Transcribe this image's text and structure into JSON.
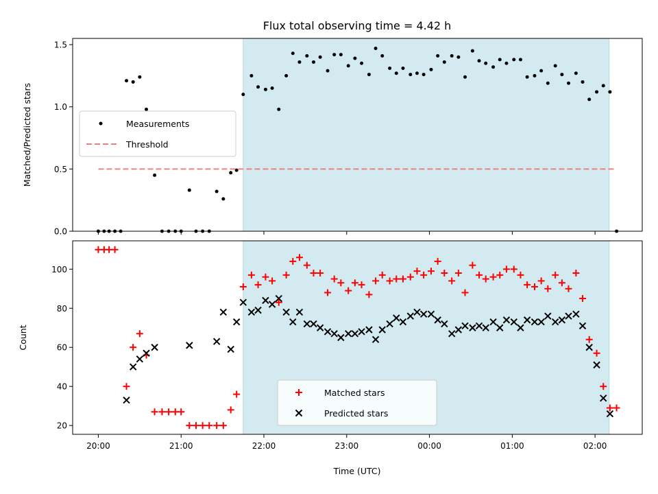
{
  "chart_data": {
    "title": "Flux total observing time = 4.42 h",
    "x_axis": {
      "label": "Time (UTC)",
      "unit": "hours since 20:00 UTC",
      "range": [
        -0.31,
        6.57
      ],
      "ticks": [
        {
          "value": 0,
          "label": "20:00"
        },
        {
          "value": 1,
          "label": "21:00"
        },
        {
          "value": 2,
          "label": "22:00"
        },
        {
          "value": 3,
          "label": "23:00"
        },
        {
          "value": 4,
          "label": "00:00"
        },
        {
          "value": 5,
          "label": "01:00"
        },
        {
          "value": 6,
          "label": "02:00"
        }
      ]
    },
    "observing_window": {
      "start": 1.75,
      "end": 6.17,
      "color": "#d3ebf0"
    },
    "panels": [
      {
        "id": "ratio",
        "type": "scatter",
        "ylabel": "Matched/Predicted stars",
        "ylim": [
          0,
          1.55
        ],
        "yticks": [
          {
            "value": 0,
            "label": "0.0"
          },
          {
            "value": 0.5,
            "label": "0.5"
          },
          {
            "value": 1.0,
            "label": "1.0"
          },
          {
            "value": 1.5,
            "label": "1.5"
          }
        ],
        "legend": {
          "position": "center-left",
          "entries": [
            {
              "label": "Measurements",
              "marker": "dot",
              "color": "#000000"
            },
            {
              "label": "Threshold",
              "marker": "dashed-line",
              "color": "#f08080"
            }
          ]
        },
        "series": [
          {
            "name": "Measurements",
            "marker": "dot",
            "color": "#000000",
            "points": [
              [
                0.0,
                0
              ],
              [
                0.07,
                0
              ],
              [
                0.13,
                0
              ],
              [
                0.2,
                0
              ],
              [
                0.27,
                0
              ],
              [
                0.34,
                1.21
              ],
              [
                0.42,
                1.2
              ],
              [
                0.5,
                1.24
              ],
              [
                0.58,
                0.98
              ],
              [
                0.68,
                0.45
              ],
              [
                0.77,
                0
              ],
              [
                0.85,
                0
              ],
              [
                0.93,
                0
              ],
              [
                1.0,
                0
              ],
              [
                1.1,
                0.33
              ],
              [
                1.18,
                0
              ],
              [
                1.26,
                0
              ],
              [
                1.34,
                0
              ],
              [
                1.43,
                0.32
              ],
              [
                1.51,
                0.26
              ],
              [
                1.6,
                0.47
              ],
              [
                1.67,
                0.49
              ],
              [
                1.75,
                1.1
              ],
              [
                1.85,
                1.25
              ],
              [
                1.93,
                1.16
              ],
              [
                2.02,
                1.14
              ],
              [
                2.1,
                1.15
              ],
              [
                2.18,
                0.98
              ],
              [
                2.27,
                1.25
              ],
              [
                2.35,
                1.43
              ],
              [
                2.43,
                1.36
              ],
              [
                2.52,
                1.41
              ],
              [
                2.6,
                1.36
              ],
              [
                2.68,
                1.4
              ],
              [
                2.77,
                1.29
              ],
              [
                2.85,
                1.42
              ],
              [
                2.93,
                1.42
              ],
              [
                3.02,
                1.33
              ],
              [
                3.1,
                1.39
              ],
              [
                3.18,
                1.35
              ],
              [
                3.27,
                1.26
              ],
              [
                3.35,
                1.47
              ],
              [
                3.43,
                1.41
              ],
              [
                3.52,
                1.31
              ],
              [
                3.6,
                1.27
              ],
              [
                3.68,
                1.31
              ],
              [
                3.77,
                1.26
              ],
              [
                3.85,
                1.27
              ],
              [
                3.93,
                1.26
              ],
              [
                4.02,
                1.3
              ],
              [
                4.1,
                1.41
              ],
              [
                4.18,
                1.36
              ],
              [
                4.27,
                1.41
              ],
              [
                4.35,
                1.4
              ],
              [
                4.43,
                1.24
              ],
              [
                4.52,
                1.45
              ],
              [
                4.6,
                1.37
              ],
              [
                4.68,
                1.35
              ],
              [
                4.77,
                1.32
              ],
              [
                4.85,
                1.38
              ],
              [
                4.93,
                1.35
              ],
              [
                5.02,
                1.38
              ],
              [
                5.1,
                1.38
              ],
              [
                5.18,
                1.24
              ],
              [
                5.27,
                1.25
              ],
              [
                5.35,
                1.29
              ],
              [
                5.43,
                1.19
              ],
              [
                5.52,
                1.33
              ],
              [
                5.6,
                1.26
              ],
              [
                5.68,
                1.19
              ],
              [
                5.77,
                1.27
              ],
              [
                5.85,
                1.2
              ],
              [
                5.93,
                1.06
              ],
              [
                6.02,
                1.12
              ],
              [
                6.1,
                1.17
              ],
              [
                6.18,
                1.12
              ],
              [
                6.26,
                0
              ]
            ]
          },
          {
            "name": "Threshold",
            "marker": "dashed-line",
            "color": "#f08080",
            "points": [
              [
                0.0,
                0.5
              ],
              [
                6.26,
                0.5
              ]
            ]
          }
        ]
      },
      {
        "id": "counts",
        "type": "scatter",
        "ylabel": "Count",
        "ylim": [
          15.5,
          114.5
        ],
        "yticks": [
          {
            "value": 20,
            "label": "20"
          },
          {
            "value": 40,
            "label": "40"
          },
          {
            "value": 60,
            "label": "60"
          },
          {
            "value": 80,
            "label": "80"
          },
          {
            "value": 100,
            "label": "100"
          }
        ],
        "legend": {
          "position": "lower-center",
          "entries": [
            {
              "label": "Matched stars",
              "marker": "plus",
              "color": "#ff0000"
            },
            {
              "label": "Predicted stars",
              "marker": "x",
              "color": "#000000"
            }
          ]
        },
        "series": [
          {
            "name": "Matched stars",
            "marker": "plus",
            "color": "#ff0000",
            "points": [
              [
                0.0,
                110
              ],
              [
                0.07,
                110
              ],
              [
                0.13,
                110
              ],
              [
                0.2,
                110
              ],
              [
                0.34,
                40
              ],
              [
                0.42,
                60
              ],
              [
                0.5,
                67
              ],
              [
                0.58,
                56
              ],
              [
                0.68,
                27
              ],
              [
                0.77,
                27
              ],
              [
                0.85,
                27
              ],
              [
                0.93,
                27
              ],
              [
                1.0,
                27
              ],
              [
                1.1,
                20
              ],
              [
                1.18,
                20
              ],
              [
                1.26,
                20
              ],
              [
                1.34,
                20
              ],
              [
                1.43,
                20
              ],
              [
                1.51,
                20
              ],
              [
                1.6,
                28
              ],
              [
                1.67,
                36
              ],
              [
                1.75,
                91
              ],
              [
                1.85,
                97
              ],
              [
                1.93,
                92
              ],
              [
                2.02,
                96
              ],
              [
                2.1,
                94
              ],
              [
                2.18,
                83
              ],
              [
                2.27,
                97
              ],
              [
                2.35,
                104
              ],
              [
                2.43,
                106
              ],
              [
                2.52,
                102
              ],
              [
                2.6,
                98
              ],
              [
                2.68,
                98
              ],
              [
                2.77,
                88
              ],
              [
                2.85,
                95
              ],
              [
                2.93,
                93
              ],
              [
                3.02,
                89
              ],
              [
                3.1,
                93
              ],
              [
                3.18,
                92
              ],
              [
                3.27,
                87
              ],
              [
                3.35,
                94
              ],
              [
                3.43,
                97
              ],
              [
                3.52,
                94
              ],
              [
                3.6,
                95
              ],
              [
                3.68,
                95
              ],
              [
                3.77,
                96
              ],
              [
                3.85,
                99
              ],
              [
                3.93,
                97
              ],
              [
                4.02,
                99
              ],
              [
                4.1,
                104
              ],
              [
                4.18,
                98
              ],
              [
                4.27,
                94
              ],
              [
                4.35,
                98
              ],
              [
                4.43,
                88
              ],
              [
                4.52,
                102
              ],
              [
                4.6,
                97
              ],
              [
                4.68,
                95
              ],
              [
                4.77,
                96
              ],
              [
                4.85,
                97
              ],
              [
                4.93,
                100
              ],
              [
                5.02,
                100
              ],
              [
                5.1,
                97
              ],
              [
                5.18,
                92
              ],
              [
                5.27,
                91
              ],
              [
                5.35,
                94
              ],
              [
                5.43,
                90
              ],
              [
                5.52,
                97
              ],
              [
                5.6,
                93
              ],
              [
                5.68,
                90
              ],
              [
                5.77,
                98
              ],
              [
                5.85,
                85
              ],
              [
                5.93,
                64
              ],
              [
                6.02,
                57
              ],
              [
                6.1,
                40
              ],
              [
                6.18,
                29
              ],
              [
                6.26,
                29
              ]
            ]
          },
          {
            "name": "Predicted stars",
            "marker": "x",
            "color": "#000000",
            "points": [
              [
                0.34,
                33
              ],
              [
                0.42,
                50
              ],
              [
                0.5,
                54
              ],
              [
                0.58,
                57
              ],
              [
                0.68,
                60
              ],
              [
                1.1,
                61
              ],
              [
                1.43,
                63
              ],
              [
                1.51,
                78
              ],
              [
                1.6,
                59
              ],
              [
                1.67,
                73
              ],
              [
                1.75,
                83
              ],
              [
                1.85,
                78
              ],
              [
                1.93,
                79
              ],
              [
                2.02,
                84
              ],
              [
                2.1,
                82
              ],
              [
                2.18,
                85
              ],
              [
                2.27,
                78
              ],
              [
                2.35,
                73
              ],
              [
                2.43,
                78
              ],
              [
                2.52,
                72
              ],
              [
                2.6,
                72
              ],
              [
                2.68,
                70
              ],
              [
                2.77,
                68
              ],
              [
                2.85,
                67
              ],
              [
                2.93,
                65
              ],
              [
                3.02,
                67
              ],
              [
                3.1,
                67
              ],
              [
                3.18,
                68
              ],
              [
                3.27,
                69
              ],
              [
                3.35,
                64
              ],
              [
                3.43,
                69
              ],
              [
                3.52,
                72
              ],
              [
                3.6,
                75
              ],
              [
                3.68,
                73
              ],
              [
                3.77,
                76
              ],
              [
                3.85,
                78
              ],
              [
                3.93,
                77
              ],
              [
                4.02,
                77
              ],
              [
                4.1,
                74
              ],
              [
                4.18,
                72
              ],
              [
                4.27,
                67
              ],
              [
                4.35,
                69
              ],
              [
                4.43,
                71
              ],
              [
                4.52,
                70
              ],
              [
                4.6,
                71
              ],
              [
                4.68,
                70
              ],
              [
                4.77,
                73
              ],
              [
                4.85,
                70
              ],
              [
                4.93,
                74
              ],
              [
                5.02,
                73
              ],
              [
                5.1,
                70
              ],
              [
                5.18,
                74
              ],
              [
                5.27,
                73
              ],
              [
                5.35,
                73
              ],
              [
                5.43,
                76
              ],
              [
                5.52,
                73
              ],
              [
                5.6,
                74
              ],
              [
                5.68,
                76
              ],
              [
                5.77,
                77
              ],
              [
                5.85,
                71
              ],
              [
                5.93,
                60
              ],
              [
                6.02,
                51
              ],
              [
                6.1,
                34
              ],
              [
                6.18,
                26
              ]
            ]
          }
        ]
      }
    ]
  }
}
